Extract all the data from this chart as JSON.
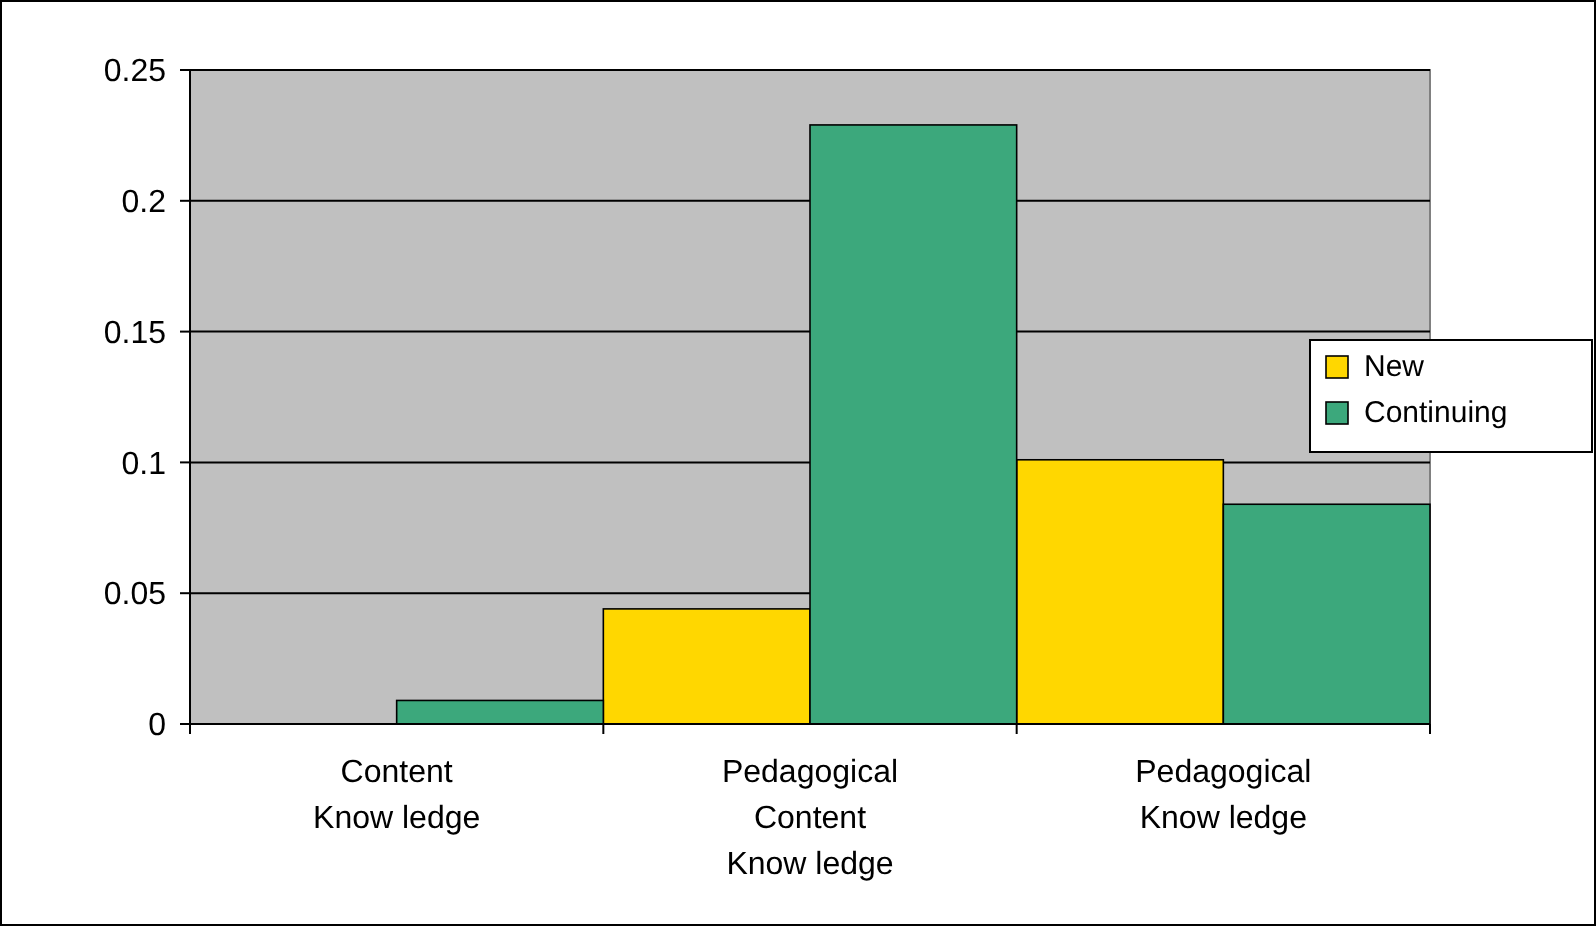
{
  "chart_data": {
    "type": "bar",
    "categories": [
      "Content\nKnow ledge",
      "Pedagogical\nContent\nKnow ledge",
      "Pedagogical\nKnow ledge"
    ],
    "series": [
      {
        "name": "New",
        "color": "#ffd700",
        "values": [
          0,
          0.044,
          0.101
        ]
      },
      {
        "name": "Continuing",
        "color": "#3ca87c",
        "values": [
          0.009,
          0.229,
          0.084
        ]
      }
    ],
    "ylim": [
      0,
      0.25
    ],
    "yticks": [
      0,
      0.05,
      {
        "value": 0.1,
        "label": "0.1"
      },
      0.15,
      {
        "value": 0.2,
        "label": "0.2"
      },
      0.25
    ],
    "grid": "y",
    "legend": "right"
  }
}
